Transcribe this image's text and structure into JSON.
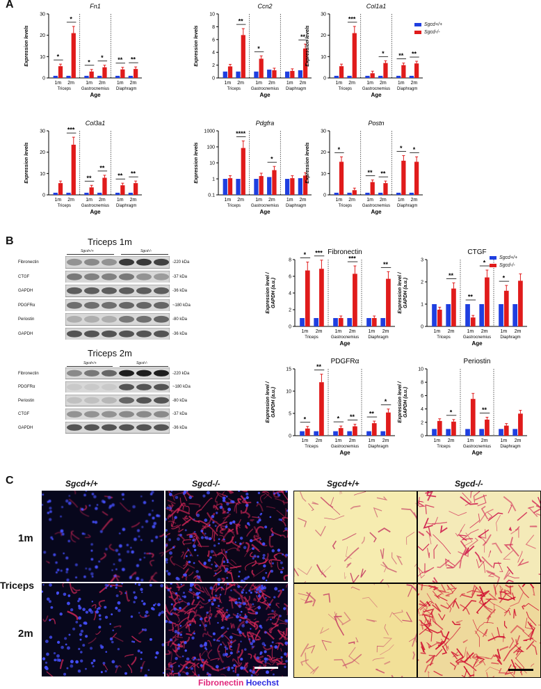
{
  "panels": {
    "a": "A",
    "b": "B",
    "c": "C"
  },
  "legend": {
    "wt": "Sgcd+/+",
    "ko": "Sgcd-/-",
    "wt_color": "#1f3fe0",
    "ko_color": "#e01b1b"
  },
  "common": {
    "age_label": "Age",
    "groups": [
      "Triceps",
      "Gastrocnemius",
      "Diaphragm"
    ],
    "ticks": [
      "1m",
      "2m"
    ]
  },
  "chart_data": [
    {
      "type": "bar",
      "title": "Fn1",
      "ylabel": "Expression levels",
      "xlabel": "Age",
      "ylim": [
        0,
        30
      ],
      "yticks": [
        0,
        10,
        20,
        30
      ],
      "categories": [
        "Triceps 1m",
        "Triceps 2m",
        "Gastrocnemius 1m",
        "Gastrocnemius 2m",
        "Diaphragm 1m",
        "Diaphragm 2m"
      ],
      "series": [
        {
          "name": "Sgcd+/+",
          "values": [
            1,
            1,
            1,
            1,
            1,
            1
          ]
        },
        {
          "name": "Sgcd-/-",
          "values": [
            5.5,
            21,
            3,
            5,
            4,
            4.2
          ]
        }
      ],
      "sig": [
        "*",
        "*",
        "*",
        "*",
        "**",
        "**"
      ]
    },
    {
      "type": "bar",
      "title": "Ccn2",
      "ylabel": "Expression levels",
      "xlabel": "Age",
      "ylim": [
        0,
        10
      ],
      "yticks": [
        0,
        2,
        4,
        6,
        8,
        10
      ],
      "categories": [
        "Triceps 1m",
        "Triceps 2m",
        "Gastrocnemius 1m",
        "Gastrocnemius 2m",
        "Diaphragm 1m",
        "Diaphragm 2m"
      ],
      "series": [
        {
          "name": "Sgcd+/+",
          "values": [
            1,
            1,
            1,
            1.3,
            1,
            1.2
          ]
        },
        {
          "name": "Sgcd-/-",
          "values": [
            1.8,
            6.7,
            3,
            1.2,
            1.1,
            4.6
          ]
        }
      ],
      "sig": [
        "",
        "**",
        "*",
        "",
        "",
        "**"
      ]
    },
    {
      "type": "bar",
      "title": "Col1a1",
      "ylabel": "Expression levels",
      "xlabel": "Age",
      "ylim": [
        0,
        30
      ],
      "yticks": [
        0,
        10,
        20,
        30
      ],
      "categories": [
        "Triceps 1m",
        "Triceps 2m",
        "Gastrocnemius 1m",
        "Gastrocnemius 2m",
        "Diaphragm 1m",
        "Diaphragm 2m"
      ],
      "series": [
        {
          "name": "Sgcd+/+",
          "values": [
            1,
            1,
            1,
            1,
            1,
            1
          ]
        },
        {
          "name": "Sgcd-/-",
          "values": [
            5.5,
            21,
            2.2,
            7,
            6,
            6.8
          ]
        }
      ],
      "sig": [
        "",
        "***",
        "",
        "*",
        "**",
        "**"
      ]
    },
    {
      "type": "bar",
      "title": "Col3a1",
      "ylabel": "Expression levels",
      "xlabel": "Age",
      "ylim": [
        0,
        30
      ],
      "yticks": [
        0,
        10,
        20,
        30
      ],
      "categories": [
        "Triceps 1m",
        "Triceps 2m",
        "Gastrocnemius 1m",
        "Gastrocnemius 2m",
        "Diaphragm 1m",
        "Diaphragm 2m"
      ],
      "series": [
        {
          "name": "Sgcd+/+",
          "values": [
            1,
            1,
            1,
            1,
            1,
            1
          ]
        },
        {
          "name": "Sgcd-/-",
          "values": [
            5.5,
            23.5,
            3.5,
            8,
            4.5,
            5.5
          ]
        }
      ],
      "sig": [
        "",
        "***",
        "**",
        "**",
        "**",
        "**"
      ]
    },
    {
      "type": "bar",
      "title": "Pdgfra",
      "ylabel": "Expression levels",
      "xlabel": "Age",
      "scale": "log",
      "ylim": [
        0.1,
        1000
      ],
      "yticks": [
        "0.1",
        "1",
        "10",
        "100",
        "1000"
      ],
      "categories": [
        "Triceps 1m",
        "Triceps 2m",
        "Gastrocnemius 1m",
        "Gastrocnemius 2m",
        "Diaphragm 1m",
        "Diaphragm 2m"
      ],
      "series": [
        {
          "name": "Sgcd+/+",
          "values": [
            1,
            1,
            1,
            1.3,
            1,
            1.1
          ]
        },
        {
          "name": "Sgcd-/-",
          "values": [
            1.1,
            85,
            1.5,
            3.5,
            1.1,
            1.6
          ]
        }
      ],
      "sig": [
        "",
        "****",
        "",
        "*",
        "",
        ""
      ]
    },
    {
      "type": "bar",
      "title": "Postn",
      "ylabel": "Expression levels",
      "xlabel": "Age",
      "ylim": [
        0,
        30
      ],
      "yticks": [
        0,
        10,
        20,
        30
      ],
      "categories": [
        "Triceps 1m",
        "Triceps 2m",
        "Gastrocnemius 1m",
        "Gastrocnemius 2m",
        "Diaphragm 1m",
        "Diaphragm 2m"
      ],
      "series": [
        {
          "name": "Sgcd+/+",
          "values": [
            1,
            1,
            1,
            1,
            1,
            1
          ]
        },
        {
          "name": "Sgcd-/-",
          "values": [
            15.5,
            2.2,
            6,
            5.5,
            16,
            15.5
          ]
        }
      ],
      "sig": [
        "*",
        "",
        "**",
        "**",
        "*",
        "*"
      ]
    },
    {
      "type": "bar",
      "title": "Fibronectin",
      "ylabel": "Expression level / GAPDH (a.u.)",
      "xlabel": "Age",
      "ylim": [
        0,
        8
      ],
      "yticks": [
        0,
        2,
        4,
        6,
        8
      ],
      "categories": [
        "Triceps 1m",
        "Triceps 2m",
        "Gastrocnemius 1m",
        "Gastrocnemius 2m",
        "Diaphragm 1m",
        "Diaphragm 2m"
      ],
      "series": [
        {
          "name": "Sgcd+/+",
          "values": [
            1,
            1,
            1,
            1,
            1,
            1
          ]
        },
        {
          "name": "Sgcd-/-",
          "values": [
            6.7,
            6.9,
            1,
            6.3,
            1,
            5.7
          ]
        }
      ],
      "sig": [
        "*",
        "***",
        "",
        "***",
        "",
        "**"
      ]
    },
    {
      "type": "bar",
      "title": "CTGF",
      "ylabel": "Expression level / GAPDH (a.u.)",
      "xlabel": "Age",
      "ylim": [
        0,
        3
      ],
      "yticks": [
        0,
        1,
        2,
        3
      ],
      "categories": [
        "Triceps 1m",
        "Triceps 2m",
        "Gastrocnemius 1m",
        "Gastrocnemius 2m",
        "Diaphragm 1m",
        "Diaphragm 2m"
      ],
      "series": [
        {
          "name": "Sgcd+/+",
          "values": [
            1,
            1,
            1,
            1,
            1,
            1
          ]
        },
        {
          "name": "Sgcd-/-",
          "values": [
            0.75,
            1.7,
            0.4,
            2.2,
            1.6,
            2.05
          ]
        }
      ],
      "sig": [
        "",
        "**",
        "**",
        "*",
        "*",
        ""
      ]
    },
    {
      "type": "bar",
      "title": "PDGFRα",
      "ylabel": "Expression level / GAPDH (a.u.)",
      "xlabel": "Age",
      "ylim": [
        0,
        15
      ],
      "yticks": [
        0,
        5,
        10,
        15
      ],
      "categories": [
        "Triceps 1m",
        "Triceps 2m",
        "Gastrocnemius 1m",
        "Gastrocnemius 2m",
        "Diaphragm 1m",
        "Diaphragm 2m"
      ],
      "series": [
        {
          "name": "Sgcd+/+",
          "values": [
            1,
            1,
            1,
            1,
            1,
            1
          ]
        },
        {
          "name": "Sgcd-/-",
          "values": [
            1.6,
            12,
            1.7,
            2.1,
            2.8,
            5.2
          ]
        }
      ],
      "sig": [
        "*",
        "**",
        "*",
        "**",
        "**",
        "*"
      ]
    },
    {
      "type": "bar",
      "title": "Periostin",
      "ylabel": "Expression level / GAPDH (a.u.)",
      "xlabel": "Age",
      "ylim": [
        0,
        10
      ],
      "yticks": [
        0,
        2,
        4,
        6,
        8,
        10
      ],
      "categories": [
        "Triceps 1m",
        "Triceps 2m",
        "Gastrocnemius 1m",
        "Gastrocnemius 2m",
        "Diaphragm 1m",
        "Diaphragm 2m"
      ],
      "series": [
        {
          "name": "Sgcd+/+",
          "values": [
            1,
            1,
            1,
            1,
            1,
            1
          ]
        },
        {
          "name": "Sgcd-/-",
          "values": [
            2.2,
            2.1,
            5.5,
            2.4,
            1.5,
            3.3
          ]
        }
      ],
      "sig": [
        "",
        "*",
        "",
        "**",
        "",
        ""
      ]
    }
  ],
  "blots": {
    "b1": {
      "title": "Triceps 1m",
      "g1": "Sgcd+/+",
      "g2": "Sgcd-/-",
      "rows": [
        {
          "name": "Fibronectin",
          "kda": "-220 kDa"
        },
        {
          "name": "CTGF",
          "kda": "-37 kDa"
        },
        {
          "name": "GAPDH",
          "kda": "-36 kDa"
        },
        {
          "name": "PDGFRα",
          "kda": "~180 kDa"
        },
        {
          "name": "Periostin",
          "kda": "-80 kDa"
        },
        {
          "name": "GAPDH",
          "kda": "-36 kDa"
        }
      ]
    },
    "b2": {
      "title": "Triceps 2m",
      "g1": "Sgcd+/+",
      "g2": "Sgcd-/-",
      "rows": [
        {
          "name": "Fibronectin",
          "kda": "-220 kDa"
        },
        {
          "name": "PDGFRα",
          "kda": "~180 kDa"
        },
        {
          "name": "Periostin",
          "kda": "-80 kDa"
        },
        {
          "name": "CTGF",
          "kda": "-37 kDa"
        },
        {
          "name": "GAPDH",
          "kda": "-36 kDa"
        }
      ]
    }
  },
  "panel_c": {
    "col_heads": [
      "Sgcd+/+",
      "Sgcd-/-",
      "Sgcd+/+",
      "Sgcd-/-"
    ],
    "row_1m": "1m",
    "row_2m": "2m",
    "side": "Triceps",
    "caption_fn": "Fibronectin",
    "caption_h": "Hoechst",
    "fn_color": "#e0267a",
    "hoechst_color": "#2a2ae0"
  }
}
